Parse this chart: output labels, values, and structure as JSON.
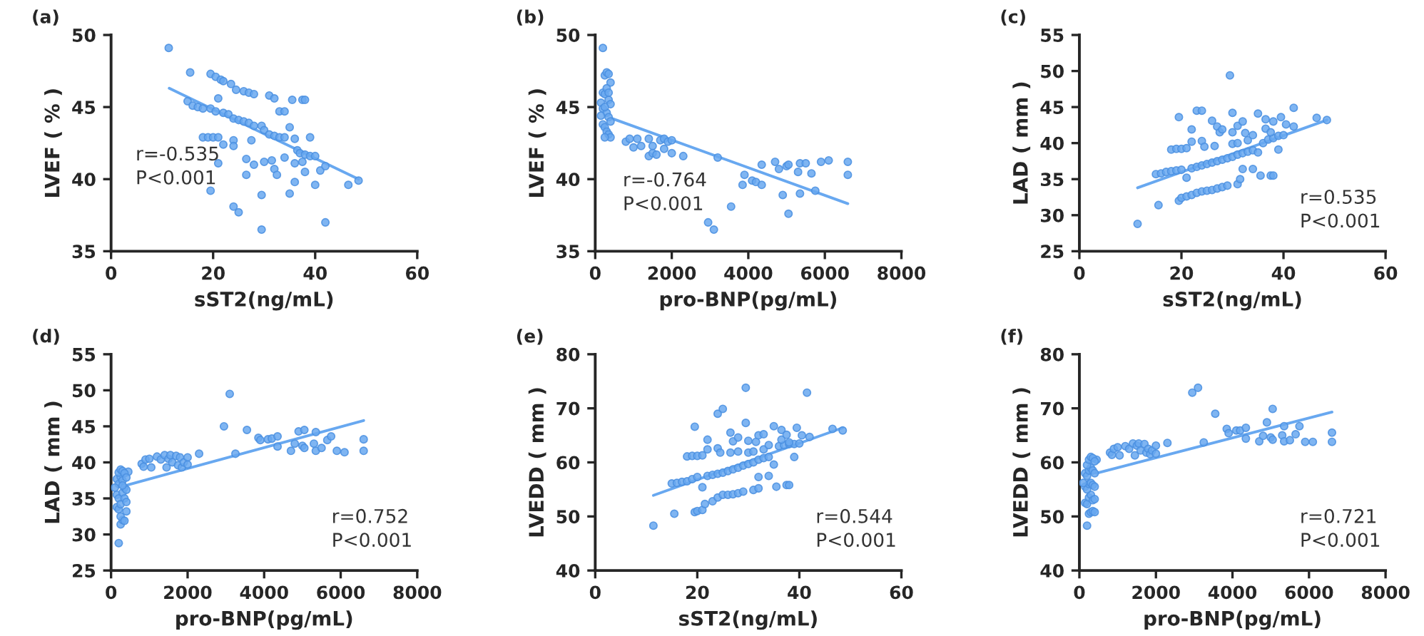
{
  "chart_data": [
    {
      "type": "scatter",
      "title": "(a)",
      "xlabel": "sST2(ng/mL)",
      "ylabel": "LVEF ( % )",
      "xlim": [
        0,
        60
      ],
      "xticks": [
        0,
        20,
        40,
        60
      ],
      "ylim": [
        35,
        50
      ],
      "yticks": [
        35,
        40,
        45,
        50
      ],
      "grid": false,
      "annotations": [
        "r=-0.535",
        "P<0.001"
      ],
      "series": [
        {
          "marker": "circle",
          "color": "#68a8f0",
          "x": [
            11.3,
            15.5,
            19.5,
            20.5,
            21.5,
            22,
            23.5,
            24.5,
            26,
            27,
            28,
            31,
            32,
            35.5,
            37.5,
            38,
            15,
            16,
            17,
            18,
            19.5,
            21,
            20.5,
            22,
            23,
            24,
            25,
            26,
            27,
            28,
            29.5,
            30,
            31,
            32,
            33,
            34,
            35,
            36,
            36.5,
            37,
            38,
            39,
            40,
            18,
            19,
            20,
            21,
            22,
            21,
            24,
            24,
            26.5,
            27.5,
            28,
            26.5,
            30,
            31.5,
            32,
            32.5,
            33,
            34,
            34,
            36,
            36,
            37.5,
            38,
            39,
            40,
            41,
            42,
            46.5,
            48.5,
            19.5,
            24,
            25,
            29.5,
            29.5,
            35,
            42
          ],
          "values": [
            49.1,
            47.4,
            47.3,
            47.1,
            46.9,
            46.8,
            46.6,
            46.2,
            46.1,
            46.0,
            45.9,
            45.8,
            45.6,
            45.5,
            45.5,
            45.5,
            45.4,
            45.1,
            45.0,
            44.9,
            44.9,
            45.6,
            44.7,
            44.6,
            44.5,
            44.2,
            44.1,
            44.0,
            43.9,
            43.7,
            43.7,
            43.4,
            43.1,
            43.0,
            42.9,
            42.9,
            43.6,
            42.8,
            42.0,
            41.8,
            41.7,
            41.6,
            41.6,
            42.9,
            42.9,
            42.9,
            42.9,
            42.4,
            41.1,
            42.7,
            42.3,
            41.4,
            42.7,
            41.0,
            40.3,
            41.2,
            41.3,
            40.7,
            40.3,
            44.7,
            44.7,
            41.5,
            41.1,
            39.8,
            41.2,
            40.5,
            42.9,
            39.6,
            40.6,
            40.9,
            39.6,
            39.9,
            39.2,
            38.1,
            37.7,
            38.9,
            36.5,
            39.0,
            37.0
          ]
        },
        {
          "type": "line",
          "color": "#68a8f0",
          "x": [
            11.4,
            48.5
          ],
          "values": [
            46.3,
            40.0
          ]
        }
      ]
    },
    {
      "type": "scatter",
      "title": "(b)",
      "xlabel": "pro-BNP(pg/mL)",
      "ylabel": "LVEF ( % )",
      "xlim": [
        0,
        8000
      ],
      "xticks": [
        0,
        2000,
        4000,
        6000,
        8000
      ],
      "ylim": [
        35,
        50
      ],
      "yticks": [
        35,
        40,
        45,
        50
      ],
      "grid": false,
      "annotations": [
        "r=-0.764",
        "P<0.001"
      ],
      "series": [
        {
          "marker": "circle",
          "color": "#68a8f0",
          "x": [
            200,
            250,
            300,
            350,
            400,
            200,
            250,
            300,
            350,
            400,
            150,
            200,
            300,
            350,
            400,
            200,
            250,
            300,
            350,
            400,
            250,
            150,
            250,
            350,
            800,
            900,
            1000,
            1100,
            1200,
            1400,
            1400,
            1500,
            1500,
            1600,
            1700,
            1800,
            1800,
            1900,
            2000,
            2000,
            2300,
            3200,
            2950,
            3100,
            3550,
            3850,
            3900,
            4100,
            4200,
            4350,
            4350,
            4700,
            4800,
            4900,
            5000,
            5050,
            5050,
            5300,
            5350,
            5350,
            5500,
            5650,
            5750,
            5900,
            6100,
            6600,
            6600
          ],
          "values": [
            49.1,
            47.2,
            47.4,
            47.3,
            46.7,
            46.0,
            45.9,
            46.3,
            45.5,
            45.2,
            45.3,
            44.9,
            44.6,
            44.3,
            44.0,
            43.8,
            43.6,
            43.3,
            43.1,
            42.9,
            42.9,
            44.4,
            45.0,
            46.0,
            42.6,
            42.8,
            42.2,
            42.8,
            42.3,
            42.8,
            41.6,
            42.3,
            41.8,
            41.7,
            42.7,
            42.1,
            42.8,
            42.6,
            42.7,
            41.8,
            41.6,
            41.5,
            37.0,
            36.5,
            38.1,
            39.6,
            40.3,
            39.9,
            39.8,
            39.6,
            41.0,
            41.2,
            40.7,
            38.9,
            40.9,
            41.0,
            37.6,
            40.5,
            41.1,
            39.0,
            41.1,
            40.4,
            39.2,
            41.2,
            41.3,
            41.2,
            40.3
          ]
        },
        {
          "type": "line",
          "color": "#68a8f0",
          "x": [
            450,
            6600
          ],
          "values": [
            44.2,
            38.3
          ]
        }
      ]
    },
    {
      "type": "scatter",
      "title": "(c)",
      "xlabel": "sST2(ng/mL)",
      "ylabel": "LAD ( mm )",
      "xlim": [
        0,
        60
      ],
      "xticks": [
        0,
        20,
        40,
        60
      ],
      "ylim": [
        25,
        55
      ],
      "yticks": [
        25,
        30,
        35,
        40,
        45,
        50,
        55
      ],
      "grid": false,
      "annotations": [
        "r=0.535",
        "P<0.001"
      ],
      "series": [
        {
          "marker": "circle",
          "color": "#68a8f0",
          "x": [
            11.4,
            15.5,
            19.5,
            20,
            21,
            22,
            23,
            24,
            25,
            26,
            27,
            28,
            29,
            31,
            31.5,
            32,
            34,
            35.5,
            37.5,
            38,
            15,
            16,
            17,
            18,
            19,
            20,
            21,
            22,
            23,
            24,
            25,
            26,
            27,
            28,
            29,
            30,
            31,
            32,
            33,
            34,
            35,
            36,
            37,
            38,
            39,
            40,
            30,
            31,
            33,
            34,
            18,
            19,
            20,
            21,
            22,
            24,
            24.5,
            26.5,
            19.5,
            22,
            23,
            24,
            26,
            27,
            27.5,
            28,
            29.5,
            30,
            30,
            31,
            32,
            32.5,
            35,
            36.5,
            36.5,
            37.5,
            38,
            39,
            39.5,
            40.5,
            42,
            42,
            46.5,
            48.5
          ],
          "values": [
            28.8,
            31.4,
            32.0,
            32.4,
            32.6,
            32.8,
            33.1,
            33.3,
            33.4,
            33.5,
            33.7,
            33.9,
            34.1,
            34.3,
            35.0,
            36.4,
            36.4,
            35.5,
            35.5,
            35.5,
            35.7,
            35.8,
            36.0,
            36.1,
            36.2,
            36.3,
            35.2,
            36.5,
            36.7,
            36.9,
            37.1,
            37.3,
            37.5,
            37.7,
            37.9,
            38.1,
            38.4,
            38.6,
            38.8,
            39.0,
            38.7,
            40.0,
            40.5,
            40.7,
            41.0,
            41.1,
            39.9,
            40.0,
            40.4,
            41.1,
            39.1,
            39.2,
            39.2,
            39.3,
            40.2,
            40.3,
            39.5,
            39.6,
            43.6,
            41.9,
            44.5,
            44.5,
            43.1,
            42.3,
            41.5,
            41.9,
            49.4,
            44.2,
            41.5,
            42.4,
            43.0,
            41.4,
            44.1,
            42.0,
            43.3,
            41.5,
            43.0,
            39.1,
            43.6,
            42.6,
            44.9,
            42.3,
            43.5,
            43.2
          ]
        },
        {
          "type": "line",
          "color": "#68a8f0",
          "x": [
            11.4,
            48.5
          ],
          "values": [
            33.8,
            43.2
          ]
        }
      ]
    },
    {
      "type": "scatter",
      "title": "(d)",
      "xlabel": "pro-BNP(pg/mL)",
      "ylabel": "LAD ( mm )",
      "xlim": [
        0,
        8000
      ],
      "xticks": [
        0,
        2000,
        4000,
        6000,
        8000
      ],
      "ylim": [
        25,
        55
      ],
      "yticks": [
        25,
        30,
        35,
        40,
        45,
        50,
        55
      ],
      "grid": false,
      "annotations": [
        "r=0.752",
        "P<0.001"
      ],
      "series": [
        {
          "marker": "circle",
          "color": "#68a8f0",
          "x": [
            200,
            250,
            300,
            150,
            200,
            250,
            350,
            400,
            150,
            200,
            250,
            300,
            350,
            400,
            150,
            200,
            250,
            300,
            350,
            400,
            450,
            200,
            250,
            300,
            350,
            400,
            100,
            300,
            800,
            850,
            900,
            1000,
            1050,
            1200,
            1300,
            1400,
            1450,
            1500,
            1550,
            1600,
            1700,
            1750,
            1800,
            1850,
            1900,
            2000,
            2000,
            2300,
            2950,
            3100,
            3250,
            3550,
            3850,
            3900,
            4100,
            4200,
            4350,
            4350,
            4700,
            4800,
            4900,
            5000,
            5050,
            5050,
            5300,
            5350,
            5350,
            5500,
            5650,
            5750,
            5900,
            6100,
            6600,
            6600
          ],
          "values": [
            28.8,
            31.4,
            32.0,
            33.8,
            33.5,
            32.5,
            31.9,
            33.2,
            35.5,
            35.0,
            34.2,
            35.8,
            35.0,
            34.5,
            37.7,
            37.0,
            38.0,
            37.5,
            36.5,
            36.2,
            38.7,
            38.6,
            39.0,
            38.8,
            38.5,
            37.9,
            36.5,
            36.8,
            39.8,
            39.4,
            40.4,
            40.5,
            39.3,
            40.8,
            40.4,
            41.0,
            39.3,
            40.5,
            41.0,
            40.0,
            40.9,
            39.6,
            40.7,
            39.3,
            40.0,
            40.7,
            39.7,
            41.2,
            45.0,
            49.5,
            41.2,
            44.5,
            43.4,
            43.1,
            43.2,
            43.3,
            43.6,
            42.2,
            41.6,
            42.6,
            44.3,
            42.3,
            44.5,
            42.0,
            42.6,
            41.6,
            44.2,
            42.0,
            43.1,
            43.6,
            41.6,
            41.4,
            43.2,
            41.6
          ]
        },
        {
          "type": "line",
          "color": "#68a8f0",
          "x": [
            450,
            6600
          ],
          "values": [
            36.9,
            45.8
          ]
        }
      ]
    },
    {
      "type": "scatter",
      "title": "(e)",
      "xlabel": "sST2(ng/mL)",
      "ylabel": "LVEDD ( mm )",
      "xlim": [
        0,
        60
      ],
      "xticks": [
        0,
        20,
        40,
        60
      ],
      "ylim": [
        40,
        80
      ],
      "yticks": [
        40,
        50,
        60,
        70,
        80
      ],
      "grid": false,
      "annotations": [
        "r=0.544",
        "P<0.001"
      ],
      "series": [
        {
          "marker": "circle",
          "color": "#68a8f0",
          "x": [
            11.4,
            15.5,
            19.5,
            20,
            21,
            21.5,
            23,
            24,
            25,
            26,
            27,
            28,
            29,
            31,
            32,
            32,
            34,
            35.5,
            37.5,
            38,
            15,
            16,
            17,
            18,
            19,
            20,
            21,
            22,
            23,
            24,
            25,
            26,
            27,
            28,
            29,
            30,
            31,
            32,
            33,
            34,
            35,
            36,
            37,
            38,
            39,
            40,
            30,
            31,
            33,
            34,
            18,
            19,
            20,
            21,
            22,
            24,
            24.5,
            26.5,
            19.5,
            22,
            24,
            25,
            26.5,
            27,
            28,
            28,
            29.5,
            29.5,
            30,
            31.5,
            32,
            33,
            35,
            36.5,
            36.5,
            37.5,
            38,
            39,
            39.5,
            40.5,
            41.5,
            42,
            46.5,
            48.5
          ],
          "values": [
            48.3,
            50.5,
            50.8,
            51.0,
            51.2,
            52.3,
            52.8,
            53.5,
            54.0,
            54.0,
            54.1,
            54.3,
            54.6,
            54.9,
            55.2,
            57.3,
            57.5,
            55.5,
            55.8,
            55.8,
            56.1,
            56.2,
            56.4,
            56.5,
            56.9,
            57.3,
            55.4,
            57.5,
            57.7,
            57.9,
            58.1,
            58.4,
            58.7,
            59.0,
            59.4,
            59.7,
            60.0,
            60.5,
            60.8,
            61.0,
            59.6,
            63.0,
            63.2,
            63.4,
            63.4,
            63.5,
            61.8,
            62.0,
            62.4,
            63.2,
            61.1,
            61.2,
            61.2,
            61.3,
            62.4,
            62.6,
            61.8,
            61.8,
            66.6,
            64.2,
            69.0,
            69.9,
            65.5,
            63.9,
            64.6,
            62.0,
            73.8,
            67.3,
            64.0,
            63.8,
            65.0,
            65.2,
            66.7,
            66.0,
            64.2,
            65.1,
            63.7,
            61.0,
            66.4,
            65.0,
            72.9,
            64.7,
            66.2,
            65.9
          ]
        },
        {
          "type": "line",
          "color": "#68a8f0",
          "x": [
            11.4,
            48.5
          ],
          "values": [
            53.9,
            66.4
          ]
        }
      ]
    },
    {
      "type": "scatter",
      "title": "(f)",
      "xlabel": "pro-BNP(pg/mL)",
      "ylabel": "LVEDD ( mm )",
      "xlim": [
        0,
        8000
      ],
      "xticks": [
        0,
        2000,
        4000,
        6000,
        8000
      ],
      "ylim": [
        40,
        80
      ],
      "yticks": [
        40,
        50,
        60,
        70,
        80
      ],
      "grid": false,
      "annotations": [
        "r=0.721",
        "P<0.001"
      ],
      "series": [
        {
          "marker": "circle",
          "color": "#68a8f0",
          "x": [
            200,
            250,
            300,
            350,
            400,
            150,
            200,
            250,
            300,
            350,
            400,
            150,
            200,
            250,
            300,
            350,
            400,
            100,
            150,
            200,
            250,
            300,
            350,
            400,
            450,
            200,
            250,
            300,
            350,
            400,
            800,
            850,
            900,
            1000,
            1050,
            1200,
            1300,
            1400,
            1450,
            1500,
            1550,
            1600,
            1700,
            1750,
            1800,
            1850,
            1900,
            2000,
            2000,
            2300,
            2950,
            3100,
            3250,
            3550,
            3850,
            3900,
            4100,
            4200,
            4350,
            4350,
            4700,
            4800,
            4900,
            5000,
            5050,
            5050,
            5300,
            5350,
            5350,
            5500,
            5650,
            5750,
            5900,
            6100,
            6600,
            6600
          ],
          "values": [
            48.3,
            50.5,
            50.8,
            51.0,
            50.8,
            52.5,
            52.3,
            53.5,
            54.0,
            53.0,
            53.2,
            55.5,
            55.0,
            56.0,
            56.2,
            55.8,
            55.5,
            56.2,
            58.0,
            57.5,
            58.5,
            59.0,
            58.5,
            58.0,
            60.5,
            59.5,
            60.5,
            61.0,
            60.8,
            60.2,
            61.8,
            61.4,
            62.5,
            62.8,
            61.3,
            63.0,
            62.5,
            63.5,
            61.3,
            63.1,
            63.5,
            62.2,
            63.4,
            61.8,
            62.5,
            61.5,
            62.2,
            63.1,
            61.6,
            63.6,
            72.9,
            73.8,
            63.7,
            69.0,
            66.2,
            65.4,
            65.9,
            65.9,
            66.4,
            64.4,
            63.9,
            64.9,
            67.4,
            64.6,
            69.9,
            64.2,
            65.0,
            63.9,
            66.7,
            64.1,
            65.2,
            66.7,
            63.8,
            63.8,
            65.5,
            63.8
          ]
        },
        {
          "type": "line",
          "color": "#68a8f0",
          "x": [
            450,
            6600
          ],
          "values": [
            58.0,
            69.3
          ]
        }
      ]
    }
  ]
}
